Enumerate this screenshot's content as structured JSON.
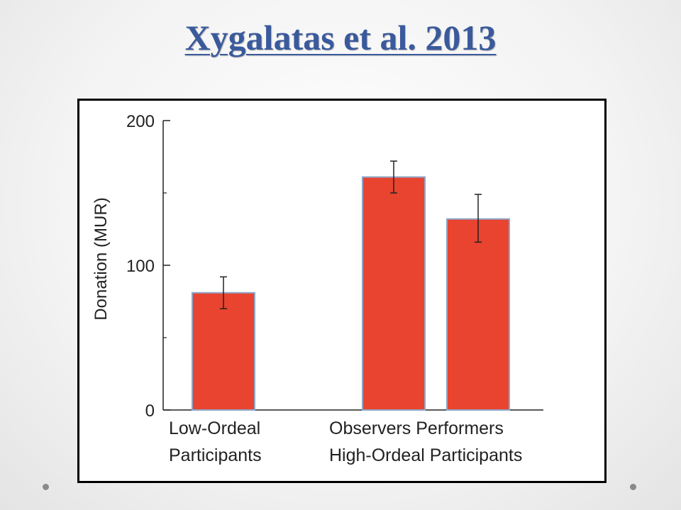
{
  "slide": {
    "title": "Xygalatas et al. 2013"
  },
  "chart_data": {
    "type": "bar",
    "categories": [
      "Low-Ordeal Participants",
      "Observers",
      "Performers"
    ],
    "group_labels": [
      {
        "line1": "Low-Ordeal",
        "line2": "Participants"
      },
      {
        "line1": "Observers Performers",
        "line2": "High-Ordeal Participants"
      }
    ],
    "values": [
      81,
      161,
      132
    ],
    "error": [
      [
        70,
        92
      ],
      [
        150,
        172
      ],
      [
        116,
        149
      ]
    ],
    "title": "",
    "xlabel": "",
    "ylabel": "Donation (MUR)",
    "ylim": [
      0,
      200
    ],
    "yticks": [
      "200",
      "100",
      "0"
    ],
    "ytick_values": [
      200,
      100,
      0
    ],
    "minor_ticks": [
      50,
      150
    ],
    "grid": false,
    "bar_color": "#e8442f",
    "bar_edge_color": "#8fa6c8"
  }
}
